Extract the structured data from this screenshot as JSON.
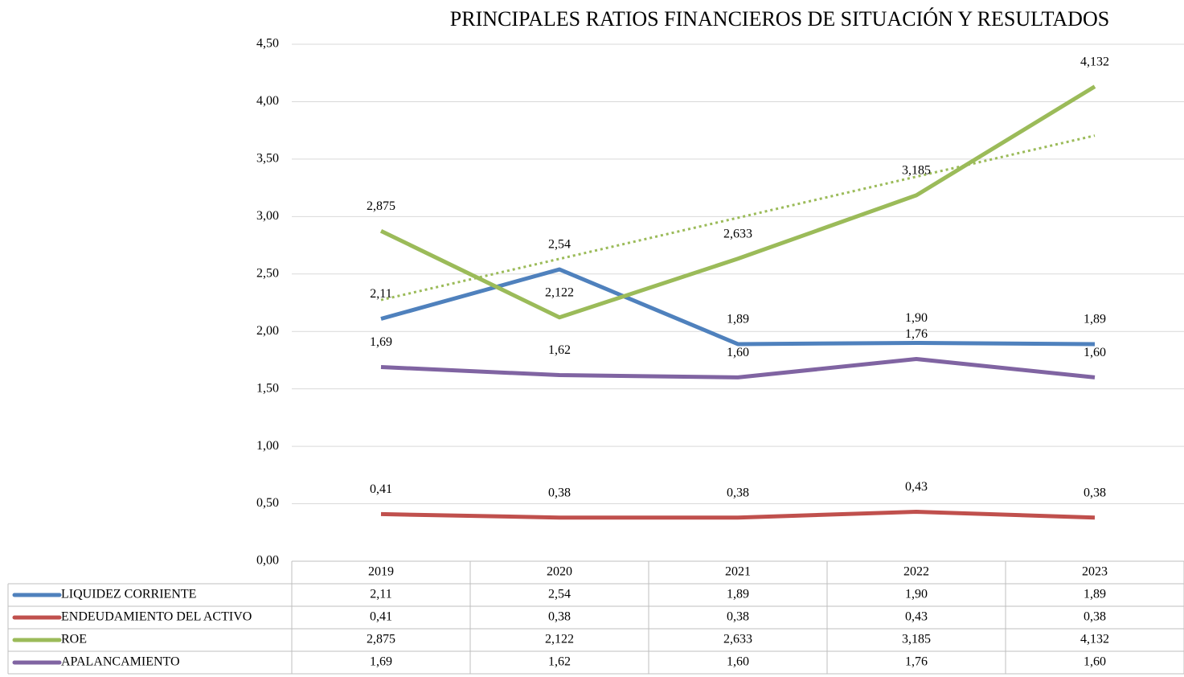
{
  "chart_data": {
    "type": "line",
    "title": "PRINCIPALES RATIOS FINANCIEROS DE SITUACIÓN Y RESULTADOS",
    "categories": [
      "2019",
      "2020",
      "2021",
      "2022",
      "2023"
    ],
    "series": [
      {
        "name": "LIQUIDEZ CORRIENTE",
        "color": "#4f81bd",
        "values": [
          2.11,
          2.54,
          1.89,
          1.9,
          1.89
        ],
        "value_labels": [
          "2,11",
          "2,54",
          "1,89",
          "1,90",
          "1,89"
        ]
      },
      {
        "name": "ENDEUDAMIENTO DEL ACTIVO",
        "color": "#c0504d",
        "values": [
          0.41,
          0.38,
          0.38,
          0.43,
          0.38
        ],
        "value_labels": [
          "0,41",
          "0,38",
          "0,38",
          "0,43",
          "0,38"
        ]
      },
      {
        "name": "ROE",
        "color": "#9bbb59",
        "values": [
          2.875,
          2.122,
          2.633,
          3.185,
          4.132
        ],
        "value_labels": [
          "2,875",
          "2,122",
          "2,633",
          "3,185",
          "4,132"
        ],
        "trendline": "linear"
      },
      {
        "name": "APALANCAMIENTO",
        "color": "#8064a2",
        "values": [
          1.69,
          1.62,
          1.6,
          1.76,
          1.6
        ],
        "value_labels": [
          "1,69",
          "1,62",
          "1,60",
          "1,76",
          "1,60"
        ]
      }
    ],
    "ylim": [
      0,
      4.5
    ],
    "yticks": [
      {
        "value": 0,
        "label": "0,00"
      },
      {
        "value": 0.5,
        "label": "0,50"
      },
      {
        "value": 1,
        "label": "1,00"
      },
      {
        "value": 1.5,
        "label": "1,50"
      },
      {
        "value": 2,
        "label": "2,00"
      },
      {
        "value": 2.5,
        "label": "2,50"
      },
      {
        "value": 3,
        "label": "3,00"
      },
      {
        "value": 3.5,
        "label": "3,50"
      },
      {
        "value": 4,
        "label": "4,00"
      },
      {
        "value": 4.5,
        "label": "4,50"
      }
    ],
    "grid": true,
    "legend": "table"
  }
}
